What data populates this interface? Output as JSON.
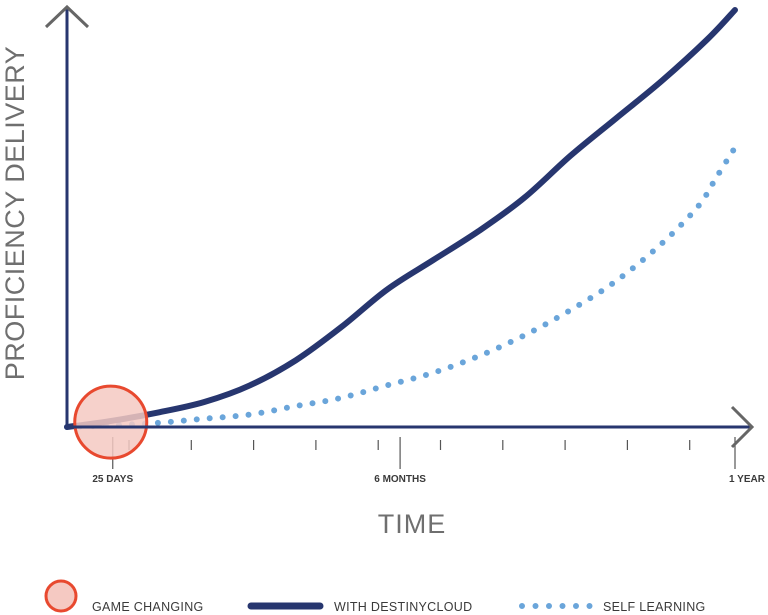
{
  "chart_data": {
    "type": "line",
    "title": "",
    "xlabel": "TIME",
    "ylabel": "PROFICIENCY DELIVERY",
    "x_ticks": [
      {
        "label": "25 DAYS",
        "value": 25
      },
      {
        "label": "6 MONTHS",
        "value": 182
      },
      {
        "label": "1 YEAR",
        "value": 365
      }
    ],
    "xlim": [
      0,
      380
    ],
    "ylim": [
      0,
      100
    ],
    "grid": false,
    "legend_position": "bottom",
    "highlight": {
      "name": "GAME CHANGING",
      "x": 25,
      "y": 5
    },
    "series": [
      {
        "name": "WITH DESTINYCLOUD",
        "style": "solid",
        "color": "#27366f",
        "x": [
          0,
          25,
          50,
          75,
          100,
          125,
          150,
          175,
          200,
          225,
          250,
          275,
          300,
          325,
          350,
          365
        ],
        "y": [
          0,
          1.5,
          3.5,
          6,
          10,
          16,
          24,
          33,
          40,
          47,
          55,
          65,
          74,
          83,
          93,
          100
        ]
      },
      {
        "name": "SELF LEARNING",
        "style": "dotted",
        "color": "#6aa5da",
        "x": [
          0,
          25,
          50,
          75,
          100,
          125,
          150,
          175,
          200,
          225,
          250,
          275,
          300,
          325,
          345,
          355,
          365
        ],
        "y": [
          0,
          0.4,
          1,
          2,
          3,
          5,
          7,
          10,
          13,
          17,
          22,
          28,
          35,
          44,
          53,
          60,
          67
        ]
      }
    ]
  },
  "colors": {
    "axis": "#27366f",
    "arrow": "#666666",
    "highlight_fill": "#f5c9c2",
    "highlight_stroke": "#e8492f"
  },
  "legend": [
    {
      "label": "GAME CHANGING",
      "symbol": "circle"
    },
    {
      "label": "WITH DESTINYCLOUD",
      "symbol": "solid-line"
    },
    {
      "label": "SELF LEARNING",
      "symbol": "dotted-line"
    }
  ]
}
